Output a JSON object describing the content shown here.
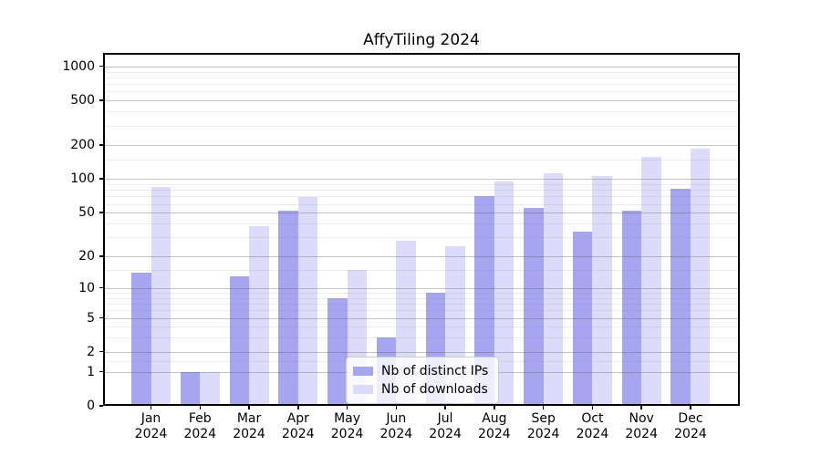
{
  "title": "AffyTiling 2024",
  "chart_data": {
    "type": "bar",
    "title": "AffyTiling 2024",
    "categories": [
      "Jan",
      "Feb",
      "Mar",
      "Apr",
      "May",
      "Jun",
      "Jul",
      "Aug",
      "Sep",
      "Oct",
      "Nov",
      "Dec"
    ],
    "x_sublabel": "2024",
    "series": [
      {
        "name": "Nb of distinct IPs",
        "color": "#a5a5f0",
        "values": [
          14,
          1,
          13,
          52,
          8,
          3,
          9,
          71,
          55,
          34,
          52,
          82
        ]
      },
      {
        "name": "Nb of downloads",
        "color": "#dcdcfa",
        "values": [
          85,
          1,
          38,
          69,
          15,
          28,
          25,
          95,
          113,
          107,
          157,
          188
        ]
      }
    ],
    "yscale": "log1p",
    "yticks": [
      0,
      1,
      2,
      5,
      10,
      20,
      50,
      100,
      200,
      500,
      1000
    ],
    "yminor": [
      1.5,
      3,
      4,
      6,
      7,
      8,
      9,
      15,
      30,
      40,
      60,
      70,
      80,
      90,
      150,
      300,
      400,
      600,
      700,
      800,
      900
    ],
    "ylim": [
      0,
      1300
    ],
    "grid": true,
    "grid_on_top": true,
    "legend_position": "lower center",
    "xlabel": "",
    "ylabel": ""
  },
  "colors": {
    "background": "#ffffff",
    "spine": "#000000",
    "major_grid": "#c6c6ca",
    "minor_grid": "#ececee",
    "bar_ips": "#a5a5f0",
    "bar_downloads": "#dcdcfa",
    "legend_border": "#cccccc"
  }
}
